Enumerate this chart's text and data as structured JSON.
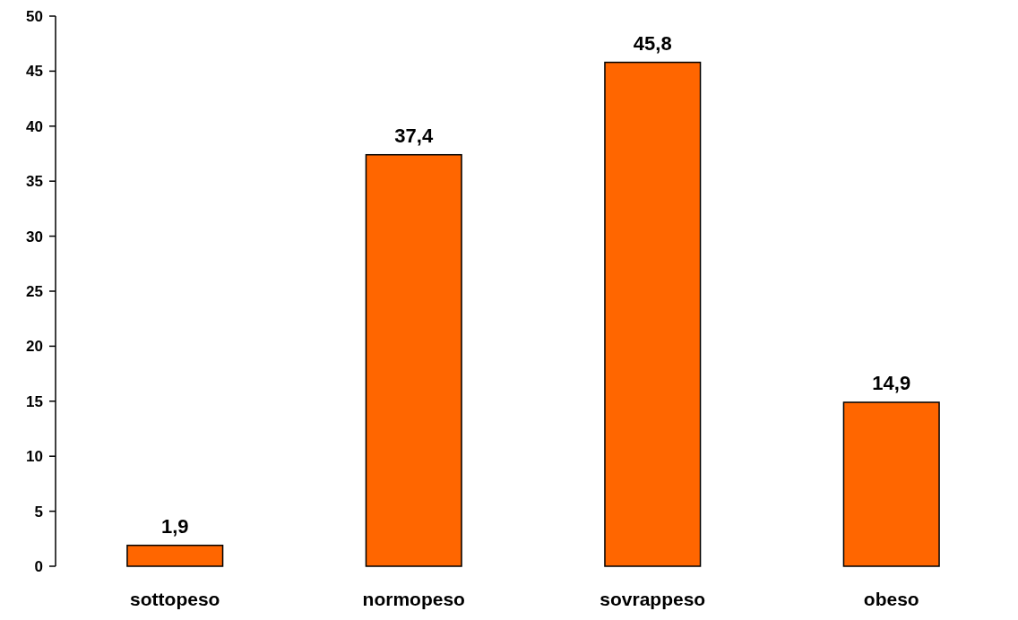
{
  "chart_data": {
    "type": "bar",
    "categories": [
      "sottopeso",
      "normopeso",
      "sovrappeso",
      "obeso"
    ],
    "values": [
      1.9,
      37.4,
      45.8,
      14.9
    ],
    "value_labels": [
      "1,9",
      "37,4",
      "45,8",
      "14,9"
    ],
    "color": "#ff6600",
    "ylim": [
      0,
      50
    ],
    "yticks": [
      0,
      5,
      10,
      15,
      20,
      25,
      30,
      35,
      40,
      45,
      50
    ]
  }
}
